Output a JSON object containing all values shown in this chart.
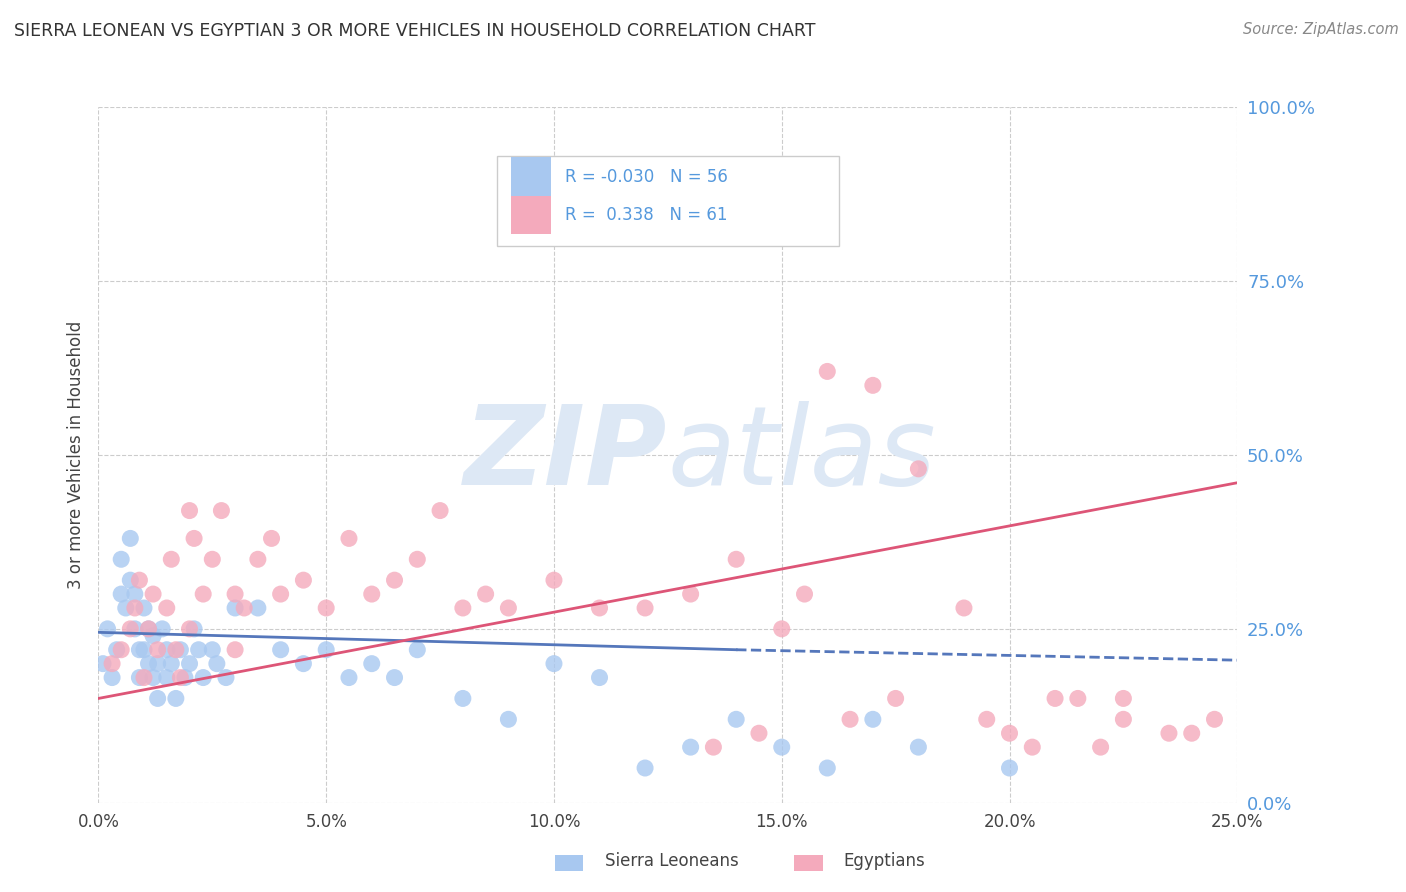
{
  "title": "SIERRA LEONEAN VS EGYPTIAN 3 OR MORE VEHICLES IN HOUSEHOLD CORRELATION CHART",
  "source": "Source: ZipAtlas.com",
  "ylabel": "3 or more Vehicles in Household",
  "xlim": [
    0.0,
    25.0
  ],
  "ylim": [
    0.0,
    100.0
  ],
  "sierra_R": -0.03,
  "sierra_N": 56,
  "egypt_R": 0.338,
  "egypt_N": 61,
  "sierra_color": "#A8C8F0",
  "egypt_color": "#F4AABC",
  "sierra_line_color": "#5577BB",
  "egypt_line_color": "#DD5577",
  "right_tick_color": "#5599DD",
  "grid_color": "#CCCCCC",
  "background_color": "#FFFFFF",
  "watermark_color": "#DDE8F5",
  "sierra_scatter_x": [
    0.1,
    0.2,
    0.3,
    0.4,
    0.5,
    0.5,
    0.6,
    0.7,
    0.7,
    0.8,
    0.8,
    0.9,
    0.9,
    1.0,
    1.0,
    1.1,
    1.1,
    1.2,
    1.2,
    1.3,
    1.3,
    1.4,
    1.5,
    1.5,
    1.6,
    1.7,
    1.8,
    1.9,
    2.0,
    2.1,
    2.2,
    2.3,
    2.5,
    2.6,
    2.8,
    3.0,
    3.5,
    4.0,
    4.5,
    5.0,
    5.5,
    6.0,
    6.5,
    7.0,
    8.0,
    9.0,
    10.0,
    11.0,
    12.0,
    13.0,
    14.0,
    15.0,
    16.0,
    17.0,
    18.0,
    20.0
  ],
  "sierra_scatter_y": [
    20,
    25,
    18,
    22,
    30,
    35,
    28,
    32,
    38,
    25,
    30,
    22,
    18,
    28,
    22,
    20,
    25,
    18,
    24,
    20,
    15,
    25,
    22,
    18,
    20,
    15,
    22,
    18,
    20,
    25,
    22,
    18,
    22,
    20,
    18,
    28,
    28,
    22,
    20,
    22,
    18,
    20,
    18,
    22,
    15,
    12,
    20,
    18,
    5,
    8,
    12,
    8,
    5,
    12,
    8,
    5
  ],
  "egypt_scatter_x": [
    0.3,
    0.5,
    0.7,
    0.8,
    0.9,
    1.0,
    1.1,
    1.2,
    1.3,
    1.5,
    1.6,
    1.7,
    1.8,
    2.0,
    2.0,
    2.1,
    2.3,
    2.5,
    2.7,
    3.0,
    3.0,
    3.2,
    3.5,
    3.8,
    4.0,
    4.5,
    5.0,
    5.5,
    6.0,
    6.5,
    7.0,
    7.5,
    8.0,
    8.5,
    9.0,
    10.0,
    11.0,
    12.0,
    13.0,
    14.0,
    15.0,
    15.5,
    16.0,
    17.0,
    18.0,
    19.0,
    20.0,
    21.0,
    22.0,
    22.5,
    23.5,
    24.5,
    13.5,
    14.5,
    16.5,
    17.5,
    19.5,
    20.5,
    21.5,
    22.5,
    24.0
  ],
  "egypt_scatter_y": [
    20,
    22,
    25,
    28,
    32,
    18,
    25,
    30,
    22,
    28,
    35,
    22,
    18,
    42,
    25,
    38,
    30,
    35,
    42,
    22,
    30,
    28,
    35,
    38,
    30,
    32,
    28,
    38,
    30,
    32,
    35,
    42,
    28,
    30,
    28,
    32,
    28,
    28,
    30,
    35,
    25,
    30,
    62,
    60,
    48,
    28,
    10,
    15,
    8,
    15,
    10,
    12,
    8,
    10,
    12,
    15,
    12,
    8,
    15,
    12,
    10
  ],
  "sierra_line_x0": 0.0,
  "sierra_line_y0": 24.5,
  "sierra_line_x1": 14.0,
  "sierra_line_y1": 22.0,
  "sierra_dash_x0": 14.0,
  "sierra_dash_y0": 22.0,
  "sierra_dash_x1": 25.0,
  "sierra_dash_y1": 20.5,
  "egypt_line_x0": 0.0,
  "egypt_line_y0": 15.0,
  "egypt_line_x1": 25.0,
  "egypt_line_y1": 46.0
}
